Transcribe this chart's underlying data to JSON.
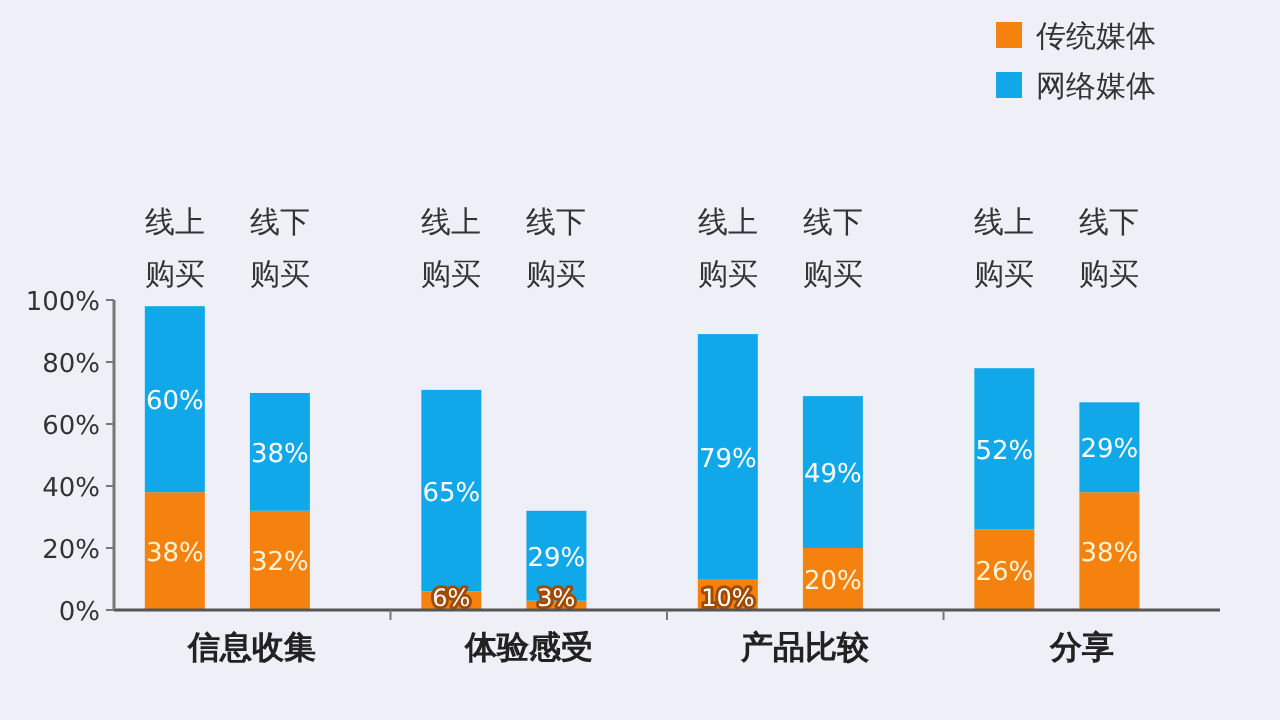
{
  "chart_data": {
    "type": "bar",
    "stacked": true,
    "legend": "top right",
    "categories": [
      "线上购买",
      "线下购买",
      "线上购买",
      "线下购买",
      "线上购买",
      "线下购买",
      "线上购买",
      "线下购买"
    ],
    "series": [
      {
        "name": "传统媒体",
        "color": "#f5820f",
        "values": [
          38,
          32,
          6,
          3,
          10,
          20,
          26,
          38
        ],
        "value_labels": [
          "38%",
          "32%",
          "6%",
          "3%",
          "10%",
          "20%",
          "26%",
          "38%"
        ]
      },
      {
        "name": "网络媒体",
        "color": "#10a8e8",
        "values": [
          60,
          38,
          65,
          29,
          79,
          49,
          52,
          29
        ],
        "value_labels": [
          "60%",
          "38%",
          "65%",
          "29%",
          "79%",
          "49%",
          "52%",
          "29%"
        ]
      }
    ],
    "ylim": [
      0,
      100
    ],
    "yticks": [
      {
        "value": 0,
        "label": "0%"
      },
      {
        "value": 20,
        "label": "20%"
      },
      {
        "value": 40,
        "label": "40%"
      },
      {
        "value": 60,
        "label": "60%"
      },
      {
        "value": 80,
        "label": "80%"
      },
      {
        "value": 100,
        "label": "100%"
      }
    ],
    "annotations": [
      "信息收集",
      "体验感受",
      "产品比较",
      "分享"
    ]
  }
}
